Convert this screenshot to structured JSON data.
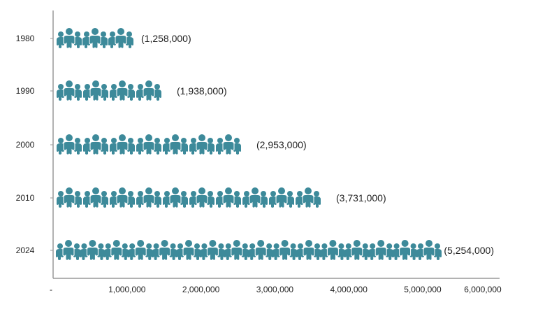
{
  "chart_data": {
    "type": "pictograph-bar",
    "orientation": "horizontal",
    "categories": [
      "1980",
      "1990",
      "2000",
      "2010",
      "2024"
    ],
    "values": [
      1258000,
      1938000,
      2953000,
      3731000,
      5254000
    ],
    "data_labels": [
      "(1,258,000)",
      "(1,938,000)",
      "(2,953,000)",
      "(3,731,000)",
      "(5,254,000)"
    ],
    "icon_counts": [
      3,
      4,
      7,
      10,
      16
    ],
    "icon": "people-group-icon",
    "x_ticks": [
      0,
      1000000,
      2000000,
      3000000,
      4000000,
      5000000,
      6000000
    ],
    "x_tick_labels": [
      "-",
      "1,000,000",
      "2,000,000",
      "3,000,000",
      "4,000,000",
      "5,000,000",
      "6,000,000"
    ],
    "xlim": [
      0,
      6000000
    ],
    "title": "",
    "xlabel": "",
    "ylabel": "",
    "grid": false,
    "legend": "none",
    "colors": {
      "icon": "#3d8a9a",
      "axis": "#999999"
    }
  }
}
